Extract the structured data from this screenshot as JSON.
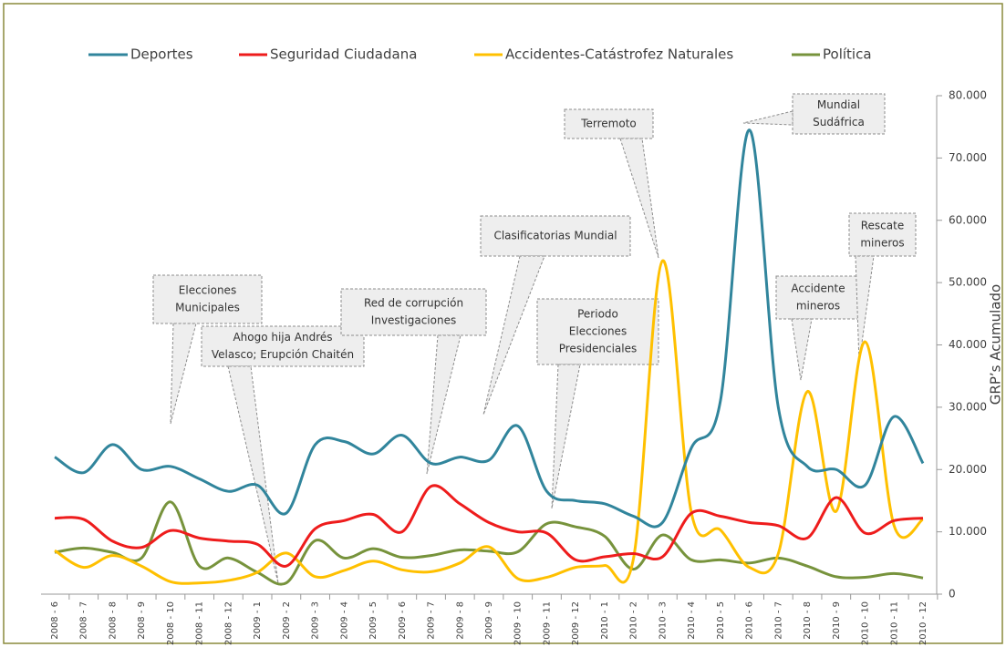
{
  "chart_data": {
    "type": "line",
    "categories": [
      "2008 - 6",
      "2008 - 7",
      "2008 - 8",
      "2008 - 9",
      "2008 - 10",
      "2008 - 11",
      "2008 - 12",
      "2009 - 1",
      "2009 - 2",
      "2009 - 3",
      "2009 - 4",
      "2009 - 5",
      "2009 - 6",
      "2009 - 7",
      "2009 - 8",
      "2009 - 9",
      "2009 - 10",
      "2009 - 11",
      "2009 - 12",
      "2010 - 1",
      "2010 - 2",
      "2010 - 3",
      "2010 - 4",
      "2010 - 5",
      "2010 - 6",
      "2010 - 7",
      "2010 - 8",
      "2010 - 9",
      "2010 - 10",
      "2010 - 11",
      "2010 - 12"
    ],
    "series": [
      {
        "name": "Deportes",
        "color": "#31859c",
        "axis": "y2",
        "values": [
          22000,
          19500,
          24000,
          20000,
          20500,
          18500,
          16500,
          17500,
          13000,
          24000,
          24500,
          22500,
          25500,
          21000,
          22000,
          21500,
          27000,
          16500,
          15000,
          14500,
          12500,
          11500,
          23500,
          31000,
          74500,
          30000,
          20500,
          20000,
          17500,
          28500,
          21000
        ]
      },
      {
        "name": "Seguridad Ciudadana",
        "color": "#ee1c1c",
        "axis": "y2",
        "values": [
          12200,
          12000,
          8500,
          7500,
          10200,
          9000,
          8500,
          8000,
          4500,
          10500,
          11800,
          12800,
          10000,
          17300,
          14500,
          11500,
          10000,
          9800,
          5500,
          6000,
          6500,
          6000,
          13000,
          12500,
          11500,
          11000,
          9000,
          15500,
          9800,
          11800,
          12200
        ]
      },
      {
        "name": "Accidentes-Catástrofez Naturales",
        "color": "#ffc000",
        "axis": "y2",
        "values": [
          7000,
          4300,
          6200,
          4500,
          2000,
          1800,
          2200,
          3500,
          6600,
          2800,
          3800,
          5300,
          3900,
          3600,
          5000,
          7600,
          2500,
          2700,
          4300,
          4600,
          5800,
          53500,
          13000,
          10300,
          4300,
          6500,
          32500,
          13300,
          40500,
          11000,
          12000
        ]
      },
      {
        "name": "Política",
        "color": "#77933c",
        "axis": "y2",
        "values": [
          6700,
          7400,
          6700,
          5800,
          14800,
          4500,
          5800,
          3500,
          1800,
          8600,
          5800,
          7300,
          5900,
          6200,
          7100,
          6900,
          6800,
          11300,
          10800,
          9300,
          4000,
          9500,
          5500,
          5500,
          5000,
          5800,
          4500,
          2800,
          2700,
          3300,
          2600
        ]
      }
    ],
    "y2label": "GRP’s Acumulado",
    "y2lim": [
      0,
      80000
    ],
    "y2ticks": [
      0,
      {
        "value": 10000,
        "label": "10.000"
      },
      {
        "value": 20000,
        "label": "20.000"
      },
      {
        "value": 30000,
        "label": "30.000"
      },
      {
        "value": 40000,
        "label": "40.000"
      },
      {
        "value": 50000,
        "label": "50.000"
      },
      {
        "value": 60000,
        "label": "60.000"
      },
      {
        "value": 70000,
        "label": "70.000"
      },
      {
        "value": 80000,
        "label": "80.000"
      }
    ],
    "legend": "top",
    "smooth": true,
    "annotations": [
      {
        "text": [
          "Elecciones",
          "Municipales"
        ]
      },
      {
        "text": [
          "Ahogo hija Andrés",
          "Velasco; Erupción Chaitén"
        ]
      },
      {
        "text": [
          "Red de corrupción",
          "Investigaciones"
        ]
      },
      {
        "text": [
          "Clasificatorias Mundial"
        ]
      },
      {
        "text": [
          "Periodo",
          "Elecciones",
          "Presidenciales"
        ]
      },
      {
        "text": [
          "Terremoto"
        ]
      },
      {
        "text": [
          "Mundial",
          "Sudáfrica"
        ]
      },
      {
        "text": [
          "Accidente",
          "mineros"
        ]
      },
      {
        "text": [
          "Rescate",
          "mineros"
        ]
      }
    ]
  }
}
